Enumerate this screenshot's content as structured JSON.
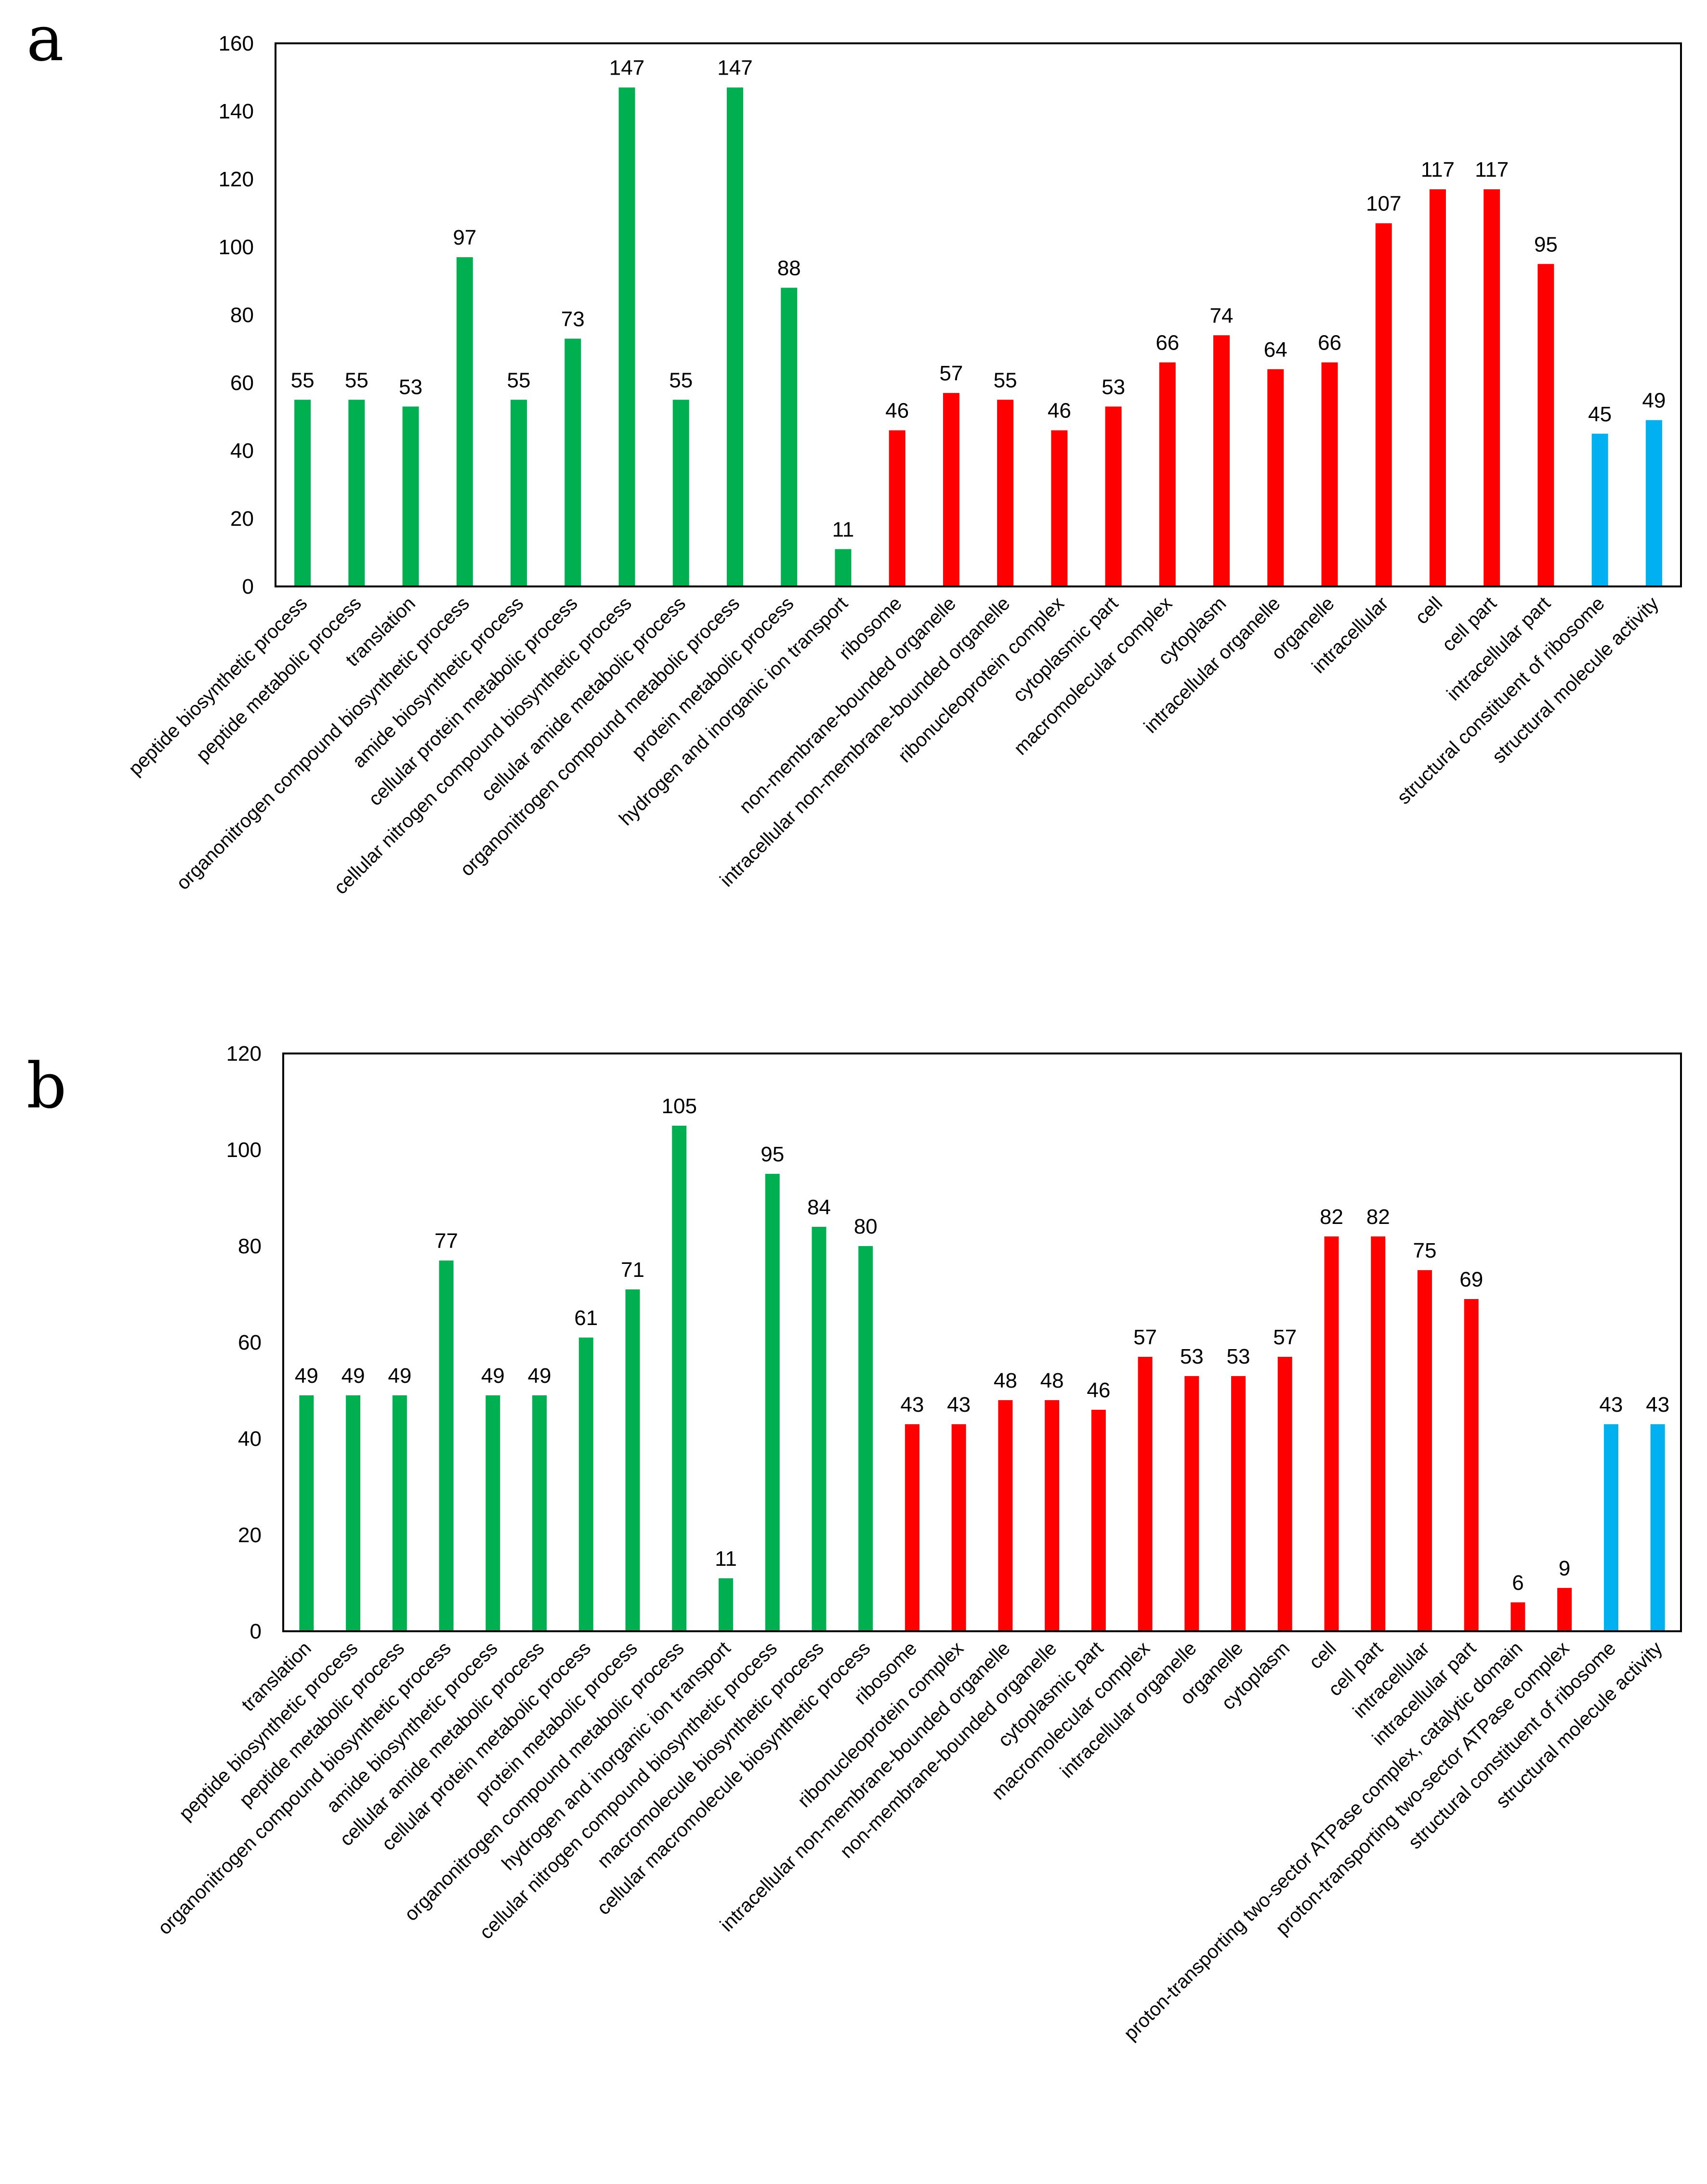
{
  "colors": {
    "biological_process": "#00b050",
    "cellular_component": "#ff0000",
    "molecular_function": "#00b0f0"
  },
  "chart_data": [
    {
      "type": "bar",
      "panel_label": "a",
      "ylim": [
        0,
        160
      ],
      "yticks": [
        0,
        20,
        40,
        60,
        80,
        100,
        120,
        140,
        160
      ],
      "categories": [
        "peptide biosynthetic process",
        "peptide metabolic process",
        "translation",
        "organonitrogen compound biosynthetic process",
        "amide biosynthetic process",
        "cellular protein metabolic process",
        "cellular nitrogen compound biosynthetic process",
        "cellular amide metabolic process",
        "organonitrogen compound metabolic process",
        "protein metabolic process",
        "hydrogen and inorganic ion transport",
        "ribosome",
        "non-membrane-bounded organelle",
        "intracellular non-membrane-bounded organelle",
        "ribonucleoprotein complex",
        "cytoplasmic part",
        "macromolecular complex",
        "cytoplasm",
        "intracellular organelle",
        "organelle",
        "intracellular",
        "cell",
        "cell part",
        "intracellular part",
        "structural constituent of ribosome",
        "structural molecule activity"
      ],
      "values": [
        55,
        55,
        53,
        97,
        55,
        73,
        147,
        55,
        147,
        88,
        11,
        46,
        57,
        55,
        46,
        53,
        66,
        74,
        64,
        66,
        107,
        117,
        117,
        95,
        45,
        49
      ],
      "groups": [
        "biological_process",
        "biological_process",
        "biological_process",
        "biological_process",
        "biological_process",
        "biological_process",
        "biological_process",
        "biological_process",
        "biological_process",
        "biological_process",
        "biological_process",
        "cellular_component",
        "cellular_component",
        "cellular_component",
        "cellular_component",
        "cellular_component",
        "cellular_component",
        "cellular_component",
        "cellular_component",
        "cellular_component",
        "cellular_component",
        "cellular_component",
        "cellular_component",
        "cellular_component",
        "molecular_function",
        "molecular_function"
      ]
    },
    {
      "type": "bar",
      "panel_label": "b",
      "ylim": [
        0,
        120
      ],
      "yticks": [
        0,
        20,
        40,
        60,
        80,
        100,
        120
      ],
      "categories": [
        "translation",
        "peptide biosynthetic process",
        "peptide metabolic process",
        "organonitrogen compound biosynthetic process",
        "amide biosynthetic process",
        "cellular amide metabolic process",
        "cellular protein metabolic process",
        "protein metabolic process",
        "organonitrogen compound metabolic process",
        "hydrogen and inorganic ion transport",
        "cellular nitrogen compound biosynthetic process",
        "macromolecule biosynthetic process",
        "cellular macromolecule biosynthetic process",
        "ribosome",
        "ribonucleoprotein complex",
        "intracellular non-membrane-bounded organelle",
        "non-membrane-bounded organelle",
        "cytoplasmic part",
        "macromolecular complex",
        "intracellular organelle",
        "organelle",
        "cytoplasm",
        "cell",
        "cell part",
        "intracellular",
        "intracellular part",
        "proton-transporting two-sector ATPase complex, catalytic domain",
        "proton-transporting two-sector ATPase complex",
        "structural constituent of ribosome",
        "structural molecule activity"
      ],
      "values": [
        49,
        49,
        49,
        77,
        49,
        49,
        61,
        71,
        105,
        11,
        95,
        84,
        80,
        43,
        43,
        48,
        48,
        46,
        57,
        53,
        53,
        57,
        82,
        82,
        75,
        69,
        6,
        9,
        43,
        43
      ],
      "groups": [
        "biological_process",
        "biological_process",
        "biological_process",
        "biological_process",
        "biological_process",
        "biological_process",
        "biological_process",
        "biological_process",
        "biological_process",
        "biological_process",
        "biological_process",
        "biological_process",
        "biological_process",
        "cellular_component",
        "cellular_component",
        "cellular_component",
        "cellular_component",
        "cellular_component",
        "cellular_component",
        "cellular_component",
        "cellular_component",
        "cellular_component",
        "cellular_component",
        "cellular_component",
        "cellular_component",
        "cellular_component",
        "cellular_component",
        "cellular_component",
        "molecular_function",
        "molecular_function"
      ]
    }
  ]
}
